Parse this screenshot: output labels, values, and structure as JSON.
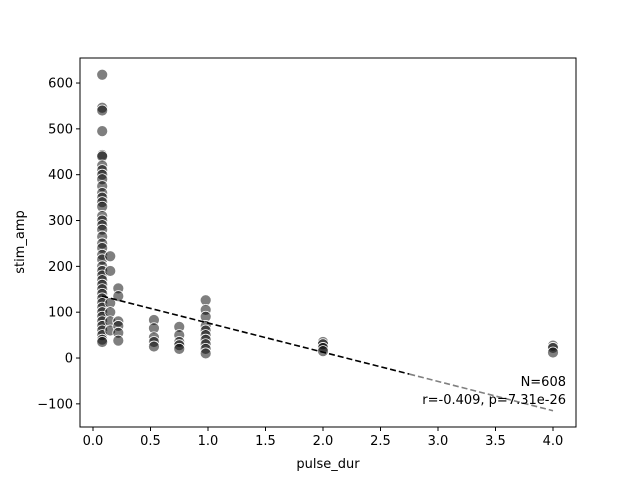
{
  "chart_data": {
    "type": "scatter",
    "xlabel": "pulse_dur",
    "ylabel": "stim_amp",
    "x": [
      0.08,
      0.08,
      0.08,
      0.08,
      0.08,
      0.08,
      0.08,
      0.08,
      0.08,
      0.08,
      0.08,
      0.08,
      0.08,
      0.08,
      0.08,
      0.08,
      0.08,
      0.08,
      0.08,
      0.08,
      0.08,
      0.08,
      0.08,
      0.08,
      0.08,
      0.08,
      0.08,
      0.08,
      0.08,
      0.08,
      0.08,
      0.08,
      0.08,
      0.08,
      0.08,
      0.08,
      0.08,
      0.08,
      0.08,
      0.08,
      0.08,
      0.08,
      0.15,
      0.15,
      0.15,
      0.15,
      0.15,
      0.15,
      0.22,
      0.22,
      0.22,
      0.22,
      0.22,
      0.22,
      0.53,
      0.53,
      0.53,
      0.53,
      0.53,
      0.75,
      0.75,
      0.75,
      0.75,
      0.75,
      0.98,
      0.98,
      0.98,
      0.98,
      0.98,
      0.98,
      0.98,
      0.98,
      0.98,
      0.98,
      2.0,
      2.0,
      2.0,
      2.0,
      4.0,
      4.0,
      4.0
    ],
    "values": [
      618,
      546,
      540,
      495,
      443,
      440,
      420,
      410,
      400,
      390,
      375,
      360,
      350,
      340,
      330,
      310,
      300,
      290,
      280,
      265,
      250,
      240,
      225,
      215,
      200,
      190,
      180,
      170,
      160,
      150,
      140,
      130,
      120,
      110,
      100,
      90,
      80,
      70,
      60,
      50,
      40,
      35,
      222,
      190,
      120,
      100,
      80,
      60,
      152,
      135,
      80,
      70,
      55,
      38,
      83,
      65,
      45,
      35,
      25,
      68,
      50,
      35,
      28,
      20,
      126,
      105,
      90,
      70,
      60,
      50,
      40,
      30,
      20,
      10,
      35,
      30,
      22,
      15,
      27,
      22,
      12
    ],
    "color": "#000000",
    "fit": {
      "x": [
        0.08,
        2.75,
        4.0
      ],
      "values": [
        135,
        -35,
        -115
      ],
      "colors": [
        "#000000",
        "#808080"
      ]
    },
    "annotations": [
      "N=608",
      "r=-0.409, p=7.31e-26"
    ],
    "xlim": [
      -0.113,
      4.2
    ],
    "ylim": [
      -150.5,
      654.6
    ],
    "xticks": [
      {
        "value": 0,
        "label": "0.0"
      },
      {
        "value": 0.5,
        "label": "0.5"
      },
      {
        "value": 1,
        "label": "1.0"
      },
      {
        "value": 1.5,
        "label": "1.5"
      },
      {
        "value": 2,
        "label": "2.0"
      },
      {
        "value": 2.5,
        "label": "2.5"
      },
      {
        "value": 3,
        "label": "3.0"
      },
      {
        "value": 3.5,
        "label": "3.5"
      },
      {
        "value": 4,
        "label": "4.0"
      }
    ],
    "yticks": [
      {
        "value": -100,
        "label": "−100"
      },
      0,
      100,
      200,
      300,
      400,
      500,
      600
    ]
  }
}
